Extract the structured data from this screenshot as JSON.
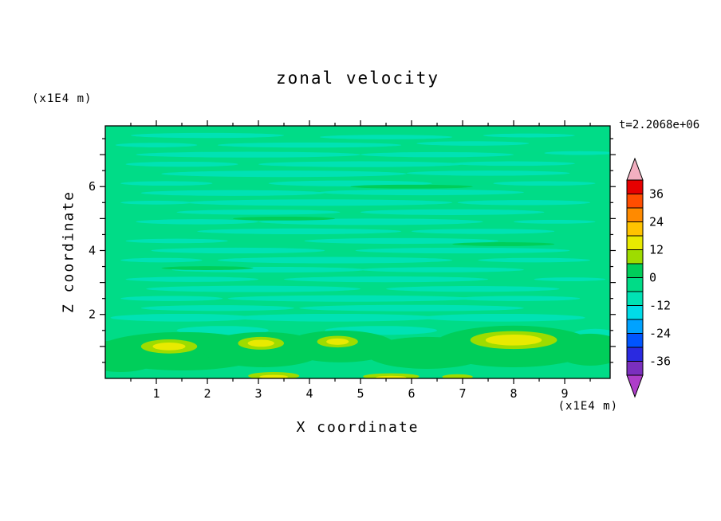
{
  "figure": {
    "title": "zonal velocity",
    "timestamp": "t=2.2068e+06",
    "x_axis": {
      "label": "X coordinate",
      "units": "(x1E4 m)",
      "ticks": [
        1,
        2,
        3,
        4,
        5,
        6,
        7,
        8,
        9
      ],
      "range": [
        0,
        9.89
      ]
    },
    "y_axis": {
      "label": "Z coordinate",
      "units": "(x1E4 m)",
      "ticks": [
        2,
        4,
        6
      ],
      "range": [
        0,
        7.9
      ]
    }
  },
  "chart_data": {
    "type": "heatmap",
    "title": "zonal velocity",
    "xlabel": "X coordinate (x1E4 m)",
    "ylabel": "Z coordinate (x1E4 m)",
    "x_range": [
      0,
      9.89
    ],
    "z_range": [
      0,
      7.9
    ],
    "time_label": "t=2.2068e+06",
    "contour_interval": 6,
    "value_range_shown": [
      -42,
      42
    ],
    "colorbar": {
      "labels_top_to_bottom": [
        "36",
        "24",
        "12",
        "0",
        "-12",
        "-24",
        "-36"
      ],
      "colors_top_to_bottom": [
        "#E60000",
        "#FF4D00",
        "#FF8A00",
        "#FFC300",
        "#E8EA00",
        "#9EDC00",
        "#00CE5A",
        "#00DC87",
        "#00E2B4",
        "#00DCE8",
        "#00A2FF",
        "#0055FF",
        "#2A2AE0",
        "#7B2FBE"
      ],
      "arrow_top_color": "#F2AFC1",
      "arrow_bottom_color": "#AE3EC9"
    },
    "field": {
      "base_color": "#00DC87",
      "groups": [
        {
          "name": "streak-neg",
          "color": "#00E2B4",
          "ellipses": [
            [
              2.0,
              7.6,
              1.5,
              0.08
            ],
            [
              5.5,
              7.55,
              1.3,
              0.07
            ],
            [
              8.3,
              7.6,
              0.9,
              0.06
            ],
            [
              1.0,
              7.3,
              0.8,
              0.07
            ],
            [
              4.0,
              7.3,
              1.8,
              0.08
            ],
            [
              7.2,
              7.35,
              1.1,
              0.07
            ],
            [
              2.8,
              7.0,
              2.2,
              0.09
            ],
            [
              6.5,
              7.0,
              1.5,
              0.08
            ],
            [
              9.3,
              7.05,
              0.7,
              0.06
            ],
            [
              1.5,
              6.7,
              1.1,
              0.08
            ],
            [
              5.0,
              6.7,
              2.0,
              0.09
            ],
            [
              8.0,
              6.72,
              1.2,
              0.07
            ],
            [
              3.5,
              6.4,
              2.4,
              0.1
            ],
            [
              7.5,
              6.42,
              1.6,
              0.08
            ],
            [
              1.2,
              6.1,
              0.9,
              0.07
            ],
            [
              4.8,
              6.1,
              1.6,
              0.09
            ],
            [
              8.6,
              6.1,
              1.0,
              0.07
            ],
            [
              2.5,
              5.8,
              1.8,
              0.09
            ],
            [
              6.2,
              5.82,
              2.0,
              0.09
            ],
            [
              1.0,
              5.5,
              0.7,
              0.06
            ],
            [
              4.2,
              5.5,
              2.6,
              0.1
            ],
            [
              8.2,
              5.5,
              1.3,
              0.08
            ],
            [
              3.0,
              5.2,
              1.6,
              0.08
            ],
            [
              6.8,
              5.2,
              1.8,
              0.09
            ],
            [
              1.8,
              4.9,
              1.2,
              0.08
            ],
            [
              5.2,
              4.9,
              2.2,
              0.1
            ],
            [
              8.8,
              4.9,
              0.8,
              0.06
            ],
            [
              3.8,
              4.6,
              2.0,
              0.09
            ],
            [
              7.4,
              4.6,
              1.4,
              0.08
            ],
            [
              1.4,
              4.3,
              1.0,
              0.07
            ],
            [
              5.8,
              4.3,
              1.9,
              0.09
            ],
            [
              2.6,
              4.0,
              1.7,
              0.09
            ],
            [
              7.0,
              4.0,
              2.1,
              0.09
            ],
            [
              1.1,
              3.7,
              0.8,
              0.07
            ],
            [
              4.5,
              3.7,
              2.3,
              0.1
            ],
            [
              8.4,
              3.7,
              1.1,
              0.07
            ],
            [
              3.2,
              3.4,
              1.9,
              0.09
            ],
            [
              6.6,
              3.4,
              1.6,
              0.08
            ],
            [
              1.7,
              3.1,
              1.3,
              0.08
            ],
            [
              5.5,
              3.1,
              2.0,
              0.09
            ],
            [
              9.1,
              3.1,
              0.7,
              0.06
            ],
            [
              2.9,
              2.8,
              2.1,
              0.1
            ],
            [
              7.2,
              2.8,
              1.7,
              0.09
            ],
            [
              1.3,
              2.5,
              1.0,
              0.08
            ],
            [
              4.8,
              2.5,
              2.4,
              0.1
            ],
            [
              8.1,
              2.5,
              1.2,
              0.08
            ],
            [
              2.2,
              2.2,
              1.5,
              0.09
            ],
            [
              6.0,
              2.2,
              2.2,
              0.1
            ],
            [
              1.5,
              1.9,
              1.4,
              0.12
            ],
            [
              4.5,
              1.9,
              2.0,
              0.12
            ],
            [
              7.8,
              1.9,
              1.6,
              0.12
            ],
            [
              2.3,
              1.5,
              0.9,
              0.14
            ],
            [
              5.4,
              1.5,
              1.1,
              0.14
            ],
            [
              9.6,
              1.3,
              0.5,
              0.25
            ]
          ]
        },
        {
          "name": "green-pos",
          "color": "#00CE5A",
          "ellipses": [
            [
              3.5,
              5.0,
              1.0,
              0.06
            ],
            [
              6.0,
              6.0,
              1.2,
              0.06
            ],
            [
              2.0,
              3.45,
              0.9,
              0.06
            ],
            [
              7.8,
              4.2,
              1.0,
              0.06
            ],
            [
              1.5,
              0.85,
              1.7,
              0.6
            ],
            [
              3.1,
              0.9,
              1.2,
              0.55
            ],
            [
              4.6,
              1.0,
              1.1,
              0.5
            ],
            [
              6.3,
              0.8,
              1.2,
              0.5
            ],
            [
              8.0,
              1.0,
              1.6,
              0.65
            ],
            [
              0.3,
              0.7,
              0.8,
              0.5
            ],
            [
              9.5,
              0.9,
              0.7,
              0.5
            ]
          ]
        },
        {
          "name": "yellow-green",
          "color": "#9EDC00",
          "ellipses": [
            [
              1.25,
              1.0,
              0.55,
              0.22
            ],
            [
              3.05,
              1.1,
              0.45,
              0.2
            ],
            [
              4.55,
              1.15,
              0.4,
              0.18
            ],
            [
              8.0,
              1.2,
              0.85,
              0.28
            ],
            [
              3.3,
              0.08,
              0.5,
              0.12
            ],
            [
              5.6,
              0.06,
              0.55,
              0.1
            ],
            [
              6.9,
              0.05,
              0.3,
              0.08
            ]
          ]
        },
        {
          "name": "yellow",
          "color": "#E8EA00",
          "ellipses": [
            [
              1.25,
              1.0,
              0.32,
              0.12
            ],
            [
              3.05,
              1.1,
              0.26,
              0.11
            ],
            [
              4.55,
              1.15,
              0.22,
              0.1
            ],
            [
              8.0,
              1.2,
              0.55,
              0.17
            ],
            [
              3.3,
              0.05,
              0.28,
              0.06
            ],
            [
              5.6,
              0.03,
              0.3,
              0.05
            ]
          ]
        }
      ]
    }
  }
}
